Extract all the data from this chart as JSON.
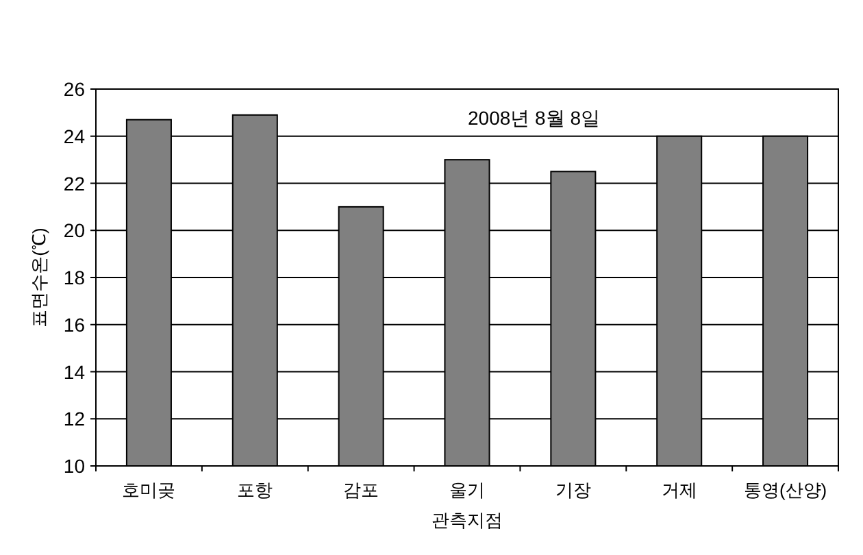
{
  "chart_data": {
    "type": "bar",
    "categories": [
      "호미곶",
      "포항",
      "감포",
      "울기",
      "기장",
      "거제",
      "통영(산양)"
    ],
    "values": [
      24.7,
      24.9,
      21.0,
      23.0,
      22.5,
      24.0,
      24.0
    ],
    "color": "#808080",
    "ylim": [
      10,
      26
    ],
    "yticks": [
      10,
      12,
      14,
      16,
      18,
      20,
      22,
      24,
      26
    ],
    "grid": "y",
    "xlabel": "관측지점",
    "ylabel": "표면수온(℃)",
    "annotations": [
      "2008년 8월 8일"
    ]
  }
}
